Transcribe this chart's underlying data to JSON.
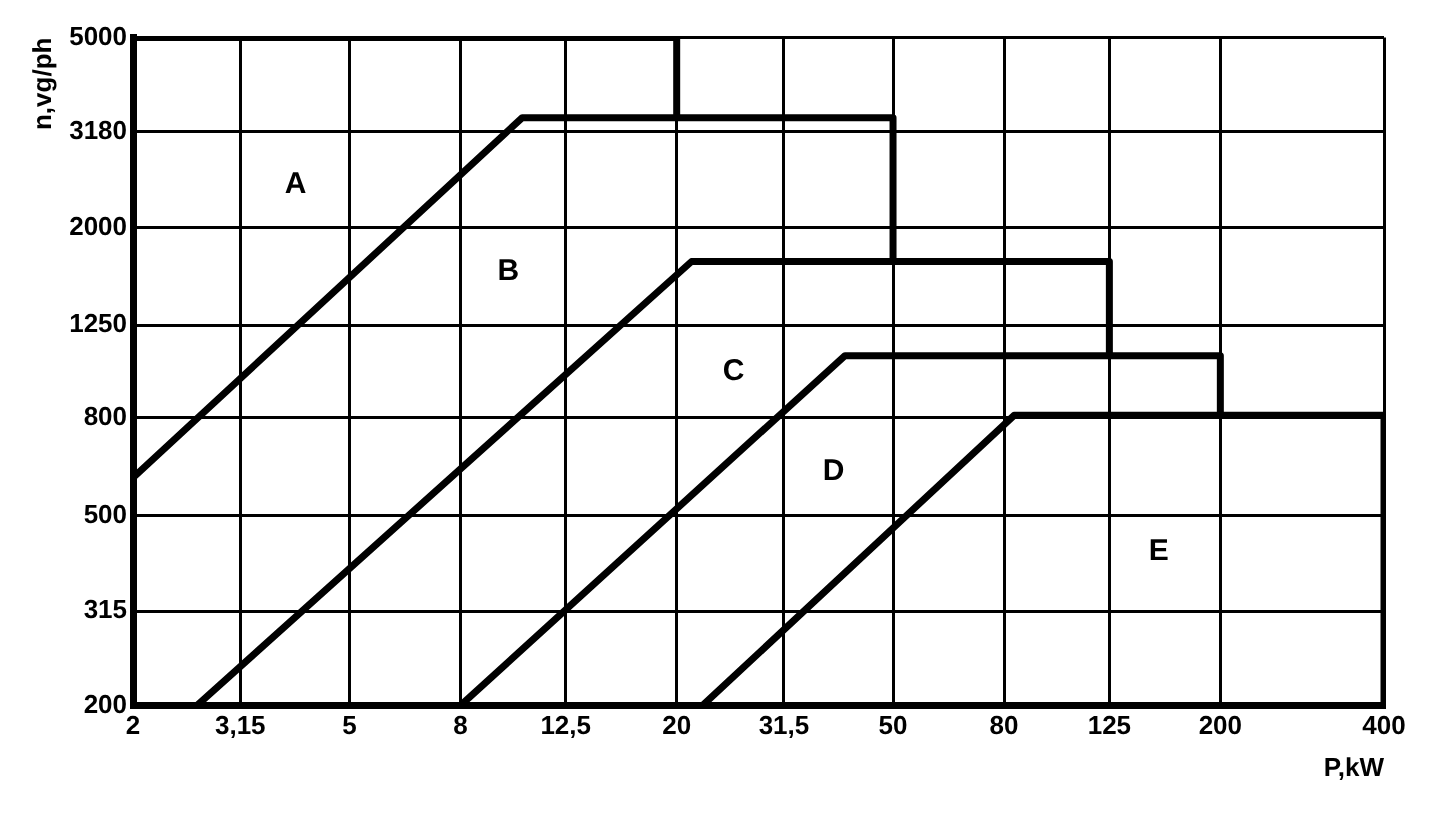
{
  "chart_data": {
    "type": "line",
    "xlabel": "P,kW",
    "ylabel": "n,vg/ph",
    "log": "xy",
    "grid": true,
    "legend": false,
    "marker": "none",
    "line_style": "solid",
    "xlim": [
      2,
      400
    ],
    "xticks": [
      2,
      {
        "value": 3.15,
        "label": "3,15"
      },
      5,
      8,
      {
        "value": 12.5,
        "label": "12,5"
      },
      20,
      {
        "value": 31.5,
        "label": "31,5"
      },
      50,
      80,
      125,
      200,
      400
    ],
    "ylim": [
      200,
      5000
    ],
    "yticks": [
      200,
      315,
      500,
      800,
      1250,
      2000,
      3180,
      5000
    ],
    "series": [
      {
        "color": "#000000",
        "x": [
          2,
          20,
          20,
          50,
          50,
          125,
          125,
          200,
          200,
          400,
          400
        ],
        "values": [
          5000,
          5000,
          3400,
          3400,
          1700,
          1700,
          1080,
          1080,
          810,
          810,
          200
        ]
      },
      {
        "color": "#000000",
        "x": [
          2,
          10.4,
          20
        ],
        "values": [
          600,
          3400,
          3400
        ]
      },
      {
        "color": "#000000",
        "x": [
          2.62,
          21.3,
          50
        ],
        "values": [
          200,
          1700,
          1700
        ]
      },
      {
        "color": "#000000",
        "x": [
          8,
          40.8,
          125
        ],
        "values": [
          200,
          1080,
          1080
        ]
      },
      {
        "color": "#000000",
        "x": [
          22.3,
          83.5,
          200
        ],
        "values": [
          200,
          810,
          810
        ]
      }
    ],
    "annotations": [
      "A",
      "B",
      "C",
      "D",
      "E"
    ]
  }
}
